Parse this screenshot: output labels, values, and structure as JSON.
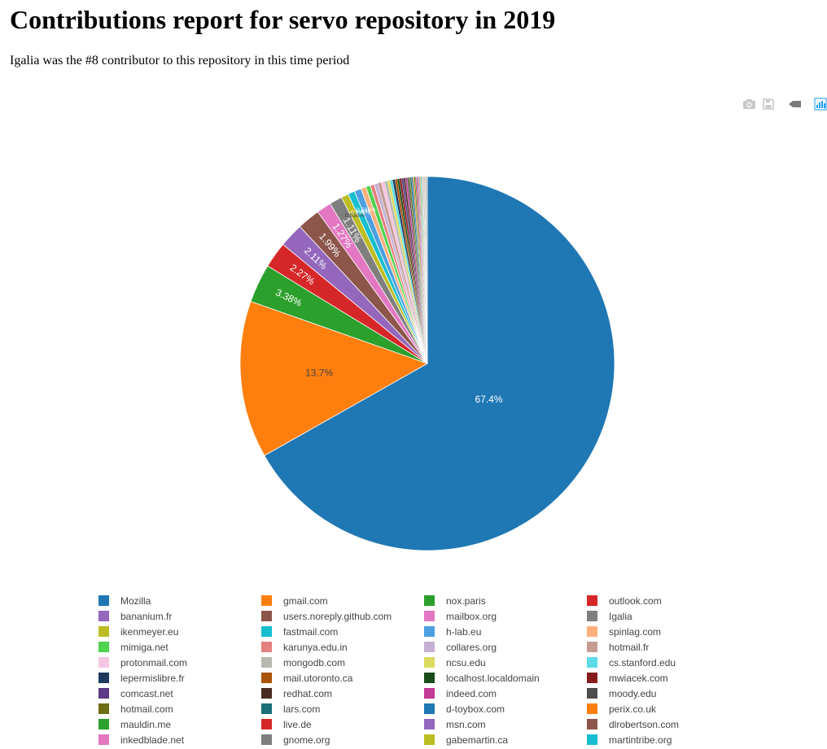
{
  "page": {
    "title": "Contributions report for servo repository in 2019",
    "subtitle": "Igalia was the #8 contributor to this repository in this time period"
  },
  "toolbar": {
    "icons": [
      "camera-icon",
      "save-icon",
      "tag-icon",
      "plotly-logo-icon"
    ]
  },
  "chart_data": {
    "type": "pie",
    "title": "",
    "direction": "clockwise",
    "start_angle_deg": 0,
    "slices": [
      {
        "label": "Mozilla",
        "value": 67.4,
        "color": "#1f77b4",
        "text": "67.4%"
      },
      {
        "label": "gmail.com",
        "value": 13.7,
        "color": "#ff7f0e",
        "text": "13.7%"
      },
      {
        "label": "nox.paris",
        "value": 3.38,
        "color": "#2ca02c",
        "text": "3.38%"
      },
      {
        "label": "outlook.com",
        "value": 2.27,
        "color": "#d62728",
        "text": "2.27%"
      },
      {
        "label": "bananium.fr",
        "value": 2.11,
        "color": "#9467bd",
        "text": "2.11%"
      },
      {
        "label": "users.noreply.github.com",
        "value": 1.99,
        "color": "#8c564b",
        "text": "1.99%"
      },
      {
        "label": "mailbox.org",
        "value": 1.27,
        "color": "#e377c2",
        "text": "1.27%"
      },
      {
        "label": "Igalia",
        "value": 1.11,
        "color": "#7f7f7f",
        "text": "1.11%"
      },
      {
        "label": "ikenmeyer.eu",
        "value": 0.636,
        "color": "#bcbd22",
        "text": "0.636%"
      },
      {
        "label": "fastmail.com",
        "value": 0.596,
        "color": "#17becf",
        "text": "0.596%"
      },
      {
        "label": "h-lab.eu",
        "value": 0.596,
        "color": "#4c9fe0",
        "text": "0.596%"
      },
      {
        "label": "spinlag.com",
        "value": 0.45,
        "color": "#ffb07c",
        "text": ""
      },
      {
        "label": "mimiga.net",
        "value": 0.4,
        "color": "#4fd24f",
        "text": ""
      },
      {
        "label": "karunya.edu.in",
        "value": 0.35,
        "color": "#e67f7f",
        "text": ""
      },
      {
        "label": "collares.org",
        "value": 0.32,
        "color": "#c5b0d5",
        "text": ""
      },
      {
        "label": "hotmail.fr",
        "value": 0.3,
        "color": "#c49c94",
        "text": ""
      },
      {
        "label": "protonmail.com",
        "value": 0.28,
        "color": "#f7c6e4",
        "text": ""
      },
      {
        "label": "mongodb.com",
        "value": 0.26,
        "color": "#b8b8b0",
        "text": ""
      },
      {
        "label": "ncsu.edu",
        "value": 0.24,
        "color": "#dbdb62",
        "text": ""
      },
      {
        "label": "cs.stanford.edu",
        "value": 0.22,
        "color": "#5cdce9",
        "text": ""
      },
      {
        "label": "lepermislibre.fr",
        "value": 0.21,
        "color": "#1b3a5c",
        "text": ""
      },
      {
        "label": "mail.utoronto.ca",
        "value": 0.2,
        "color": "#a8540b",
        "text": ""
      },
      {
        "label": "localhost.localdomain",
        "value": 0.19,
        "color": "#1b4d1b",
        "text": ""
      },
      {
        "label": "mwiacek.com",
        "value": 0.18,
        "color": "#861b1b",
        "text": ""
      },
      {
        "label": "comcast.net",
        "value": 0.17,
        "color": "#5d3a85",
        "text": ""
      },
      {
        "label": "redhat.com",
        "value": 0.16,
        "color": "#4a2b24",
        "text": ""
      },
      {
        "label": "indeed.com",
        "value": 0.15,
        "color": "#c33b94",
        "text": ""
      },
      {
        "label": "moody.edu",
        "value": 0.14,
        "color": "#4d4d4d",
        "text": ""
      },
      {
        "label": "hotmail.com",
        "value": 0.13,
        "color": "#6e6e14",
        "text": ""
      },
      {
        "label": "lars.com",
        "value": 0.12,
        "color": "#1b6f78",
        "text": ""
      },
      {
        "label": "d-toybox.com",
        "value": 0.11,
        "color": "#1f77b4",
        "text": ""
      },
      {
        "label": "perix.co.uk",
        "value": 0.1,
        "color": "#ff7f0e",
        "text": ""
      },
      {
        "label": "mauldin.me",
        "value": 0.1,
        "color": "#2ca02c",
        "text": ""
      },
      {
        "label": "live.de",
        "value": 0.09,
        "color": "#d62728",
        "text": ""
      },
      {
        "label": "msn.com",
        "value": 0.09,
        "color": "#9467bd",
        "text": ""
      },
      {
        "label": "dlrobertson.com",
        "value": 0.08,
        "color": "#8c564b",
        "text": ""
      },
      {
        "label": "inkedblade.net",
        "value": 0.08,
        "color": "#e377c2",
        "text": ""
      },
      {
        "label": "gnome.org",
        "value": 0.07,
        "color": "#7f7f7f",
        "text": ""
      },
      {
        "label": "gabemartin.ca",
        "value": 0.07,
        "color": "#bcbd22",
        "text": ""
      },
      {
        "label": "martintribe.org",
        "value": 0.07,
        "color": "#17becf",
        "text": ""
      }
    ],
    "remainder": {
      "value": 0.5,
      "colors": [
        "#b0a89b",
        "#9e8f84",
        "#c9c2b8",
        "#8a7f74"
      ]
    }
  }
}
